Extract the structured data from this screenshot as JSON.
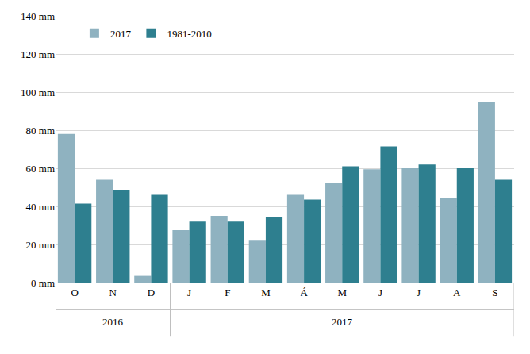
{
  "chart_data": {
    "type": "bar",
    "categories": [
      "O",
      "N",
      "D",
      "J",
      "F",
      "M",
      "Á",
      "M",
      "J",
      "J",
      "A",
      "S"
    ],
    "x_groups": [
      {
        "label": "2016",
        "count": 3
      },
      {
        "label": "2017",
        "count": 9
      }
    ],
    "series": [
      {
        "name": "2017",
        "color": "#8fb2c0",
        "values": [
          78,
          54,
          3.5,
          27.5,
          35,
          22,
          46,
          52.5,
          59.5,
          60,
          44.5,
          95
        ]
      },
      {
        "name": "1981-2010",
        "color": "#2e7f8f",
        "values": [
          41.5,
          48.5,
          46,
          32,
          32,
          34.5,
          43.5,
          61,
          71.5,
          62,
          60,
          54
        ]
      }
    ],
    "ylim": [
      0,
      140
    ],
    "yticks": [
      {
        "value": 0,
        "label": "0 mm"
      },
      {
        "value": 20,
        "label": "20 mm"
      },
      {
        "value": 40,
        "label": "40 mm"
      },
      {
        "value": 60,
        "label": "60 mm"
      },
      {
        "value": 80,
        "label": "80 mm"
      },
      {
        "value": 100,
        "label": "100 mm"
      },
      {
        "value": 120,
        "label": "120 mm"
      },
      {
        "value": 140,
        "label": "140 mm"
      }
    ],
    "grid": true,
    "legend": "top-left"
  }
}
